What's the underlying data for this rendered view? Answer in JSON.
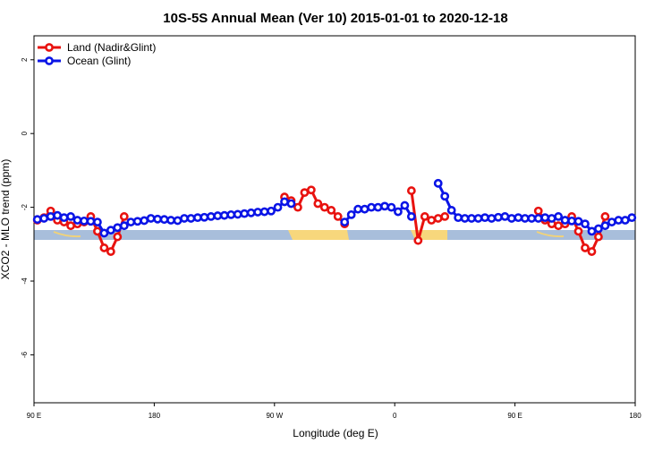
{
  "chart_data": {
    "type": "line",
    "title": "10S-5S Annual Mean (Ver 10)   2015-01-01 to 2020-12-18",
    "x_label": "Longitude (deg E)",
    "y_label": "XCO2 - MLO trend (ppm)",
    "xlim": [
      90,
      540
    ],
    "ylim": [
      -7.3,
      2.65
    ],
    "xticks": [
      {
        "value": 90,
        "label": "90 E"
      },
      180,
      {
        "value": 270,
        "label": "90 W"
      },
      {
        "value": 360,
        "label": "0"
      },
      {
        "value": 450,
        "label": "90 E"
      },
      {
        "value": 540,
        "label": "180"
      }
    ],
    "yticks": [
      -6,
      -4,
      -2,
      0,
      2
    ],
    "legend": "top-left",
    "x": [
      92.5,
      97.5,
      102.5,
      107.5,
      112.5,
      117.5,
      122.5,
      127.5,
      132.5,
      137.5,
      142.5,
      147.5,
      152.5,
      157.5,
      162.5,
      167.5,
      172.5,
      177.5,
      182.5,
      187.5,
      192.5,
      197.5,
      202.5,
      207.5,
      212.5,
      217.5,
      222.5,
      227.5,
      232.5,
      237.5,
      242.5,
      247.5,
      252.5,
      257.5,
      262.5,
      267.5,
      272.5,
      277.5,
      282.5,
      287.5,
      292.5,
      297.5,
      302.5,
      307.5,
      312.5,
      317.5,
      322.5,
      327.5,
      332.5,
      337.5,
      342.5,
      347.5,
      352.5,
      357.5,
      362.5,
      367.5,
      372.5,
      377.5,
      382.5,
      387.5,
      392.5,
      397.5,
      402.5,
      407.5,
      412.5,
      417.5,
      422.5,
      427.5,
      432.5,
      437.5,
      442.5,
      447.5,
      452.5,
      457.5,
      462.5,
      467.5,
      472.5,
      477.5,
      482.5,
      487.5,
      492.5,
      497.5,
      502.5,
      507.5,
      512.5,
      517.5,
      522.5,
      527.5,
      532.5,
      537.5
    ],
    "series": [
      {
        "name": "Land (Nadir&Glint)",
        "color": "#e8120f",
        "values": [
          -2.35,
          -2.28,
          -2.1,
          -2.35,
          -2.4,
          -2.5,
          -2.45,
          -2.4,
          -2.25,
          -2.65,
          -3.1,
          -3.2,
          -2.8,
          -2.25,
          null,
          null,
          null,
          null,
          null,
          null,
          null,
          null,
          null,
          null,
          null,
          null,
          null,
          null,
          null,
          null,
          null,
          null,
          null,
          null,
          null,
          null,
          null,
          -1.72,
          -1.82,
          -2.0,
          -1.6,
          -1.53,
          -1.9,
          -2.0,
          -2.08,
          -2.25,
          -2.45,
          null,
          null,
          null,
          null,
          null,
          null,
          null,
          null,
          null,
          -1.55,
          -2.9,
          -2.25,
          -2.35,
          -2.3,
          -2.25,
          null,
          null,
          null,
          null,
          null,
          null,
          null,
          null,
          null,
          null,
          null,
          null,
          null,
          -2.1,
          -2.35,
          -2.45,
          -2.5,
          -2.45,
          -2.25,
          -2.65,
          -3.1,
          -3.2,
          -2.8,
          -2.25,
          null,
          null,
          null,
          null
        ]
      },
      {
        "name": "Ocean (Glint)",
        "color": "#0a14e6",
        "values": [
          -2.33,
          -2.3,
          -2.25,
          -2.22,
          -2.28,
          -2.25,
          -2.35,
          -2.37,
          -2.38,
          -2.4,
          -2.7,
          -2.62,
          -2.55,
          -2.5,
          -2.4,
          -2.38,
          -2.36,
          -2.3,
          -2.32,
          -2.33,
          -2.35,
          -2.36,
          -2.3,
          -2.3,
          -2.28,
          -2.27,
          -2.25,
          -2.23,
          -2.22,
          -2.2,
          -2.19,
          -2.17,
          -2.15,
          -2.13,
          -2.12,
          -2.1,
          -2.0,
          -1.85,
          -1.9,
          null,
          null,
          null,
          null,
          null,
          null,
          null,
          -2.4,
          -2.2,
          -2.05,
          -2.05,
          -2.0,
          -2.0,
          -1.97,
          -2.0,
          -2.12,
          -1.95,
          -2.25,
          null,
          null,
          null,
          -1.35,
          -1.7,
          -2.08,
          -2.28,
          -2.3,
          -2.3,
          -2.3,
          -2.28,
          -2.3,
          -2.27,
          -2.25,
          -2.3,
          -2.28,
          -2.3,
          -2.3,
          -2.3,
          -2.28,
          -2.3,
          -2.25,
          -2.35,
          -2.37,
          -2.38,
          -2.45,
          -2.65,
          -2.58,
          -2.5,
          -2.4,
          -2.35,
          -2.35,
          -2.28
        ]
      }
    ]
  }
}
